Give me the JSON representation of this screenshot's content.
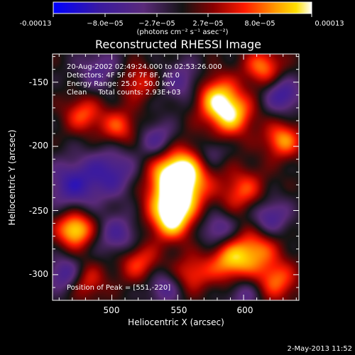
{
  "colorbar": {
    "ticks": [
      "-0.00013",
      "−8.0e−05",
      "−2.7e−05",
      "2.7e−05",
      "8.0e−05",
      "0.00013"
    ],
    "unit_label": "(photons cm⁻² s⁻¹ asec⁻²)"
  },
  "chart_data": {
    "type": "heatmap",
    "title": "Reconstructed RHESSI Image",
    "xlabel": "Heliocentric X (arcsec)",
    "ylabel": "Heliocentric Y (arcsec)",
    "xlim": [
      455,
      642
    ],
    "ylim": [
      -320,
      -128
    ],
    "xticks": [
      500,
      550,
      600
    ],
    "yticks": [
      -150,
      -200,
      -250,
      -300
    ],
    "colormap": "rhessi blue-purple-red-yellow-white",
    "vmin": -0.00013,
    "vmax": 0.00013,
    "annotations": [
      "20-Aug-2002 02:49:24.000 to 02:53:26.000",
      "Detectors: 4F 5F 6F 7F 8F, Att 0",
      "Energy Range: 25.0 - 50.0 keV",
      "Clean     Total counts: 2.93E+03"
    ],
    "peak_label": "Position of Peak = [551,-220]",
    "peak": [
      551,
      -220
    ],
    "sources": [
      {
        "x": 551,
        "y": -220,
        "amp": 1.0,
        "w": 14
      },
      {
        "x": 548,
        "y": -238,
        "amp": 0.85,
        "w": 15
      },
      {
        "x": 545,
        "y": -258,
        "amp": 0.8,
        "w": 11
      },
      {
        "x": 472,
        "y": -265,
        "amp": 0.95,
        "w": 10
      },
      {
        "x": 590,
        "y": -175,
        "amp": 0.85,
        "w": 12
      },
      {
        "x": 578,
        "y": -160,
        "amp": 0.7,
        "w": 12
      },
      {
        "x": 615,
        "y": -138,
        "amp": 0.65,
        "w": 10
      },
      {
        "x": 630,
        "y": -195,
        "amp": 0.7,
        "w": 10
      },
      {
        "x": 590,
        "y": -290,
        "amp": 0.75,
        "w": 12
      },
      {
        "x": 610,
        "y": -280,
        "amp": 0.6,
        "w": 12
      },
      {
        "x": 520,
        "y": -290,
        "amp": 0.55,
        "w": 11
      },
      {
        "x": 505,
        "y": -185,
        "amp": 0.55,
        "w": 10
      },
      {
        "x": 478,
        "y": -175,
        "amp": 0.55,
        "w": 10
      },
      {
        "x": 600,
        "y": -235,
        "amp": 0.55,
        "w": 12
      },
      {
        "x": 625,
        "y": -305,
        "amp": 0.6,
        "w": 11
      },
      {
        "x": 520,
        "y": -150,
        "amp": 0.45,
        "w": 10
      },
      {
        "x": 480,
        "y": -305,
        "amp": 0.5,
        "w": 10
      },
      {
        "x": 560,
        "y": -300,
        "amp": 0.5,
        "w": 10
      },
      {
        "x": 500,
        "y": -220,
        "amp": -0.55,
        "w": 14
      },
      {
        "x": 470,
        "y": -230,
        "amp": -0.6,
        "w": 14
      },
      {
        "x": 535,
        "y": -195,
        "amp": -0.5,
        "w": 10
      },
      {
        "x": 555,
        "y": -150,
        "amp": -0.45,
        "w": 12
      },
      {
        "x": 630,
        "y": -160,
        "amp": -0.6,
        "w": 10
      },
      {
        "x": 505,
        "y": -270,
        "amp": -0.5,
        "w": 12
      },
      {
        "x": 465,
        "y": -300,
        "amp": -0.6,
        "w": 10
      },
      {
        "x": 580,
        "y": -265,
        "amp": -0.5,
        "w": 10
      },
      {
        "x": 620,
        "y": -255,
        "amp": -0.55,
        "w": 11
      },
      {
        "x": 540,
        "y": -310,
        "amp": -0.45,
        "w": 10
      },
      {
        "x": 600,
        "y": -315,
        "amp": -0.4,
        "w": 10
      },
      {
        "x": 575,
        "y": -205,
        "amp": -0.35,
        "w": 8
      },
      {
        "x": 490,
        "y": -140,
        "amp": -0.4,
        "w": 12
      }
    ]
  },
  "footer": {
    "date": "2-May-2013 11:52"
  }
}
